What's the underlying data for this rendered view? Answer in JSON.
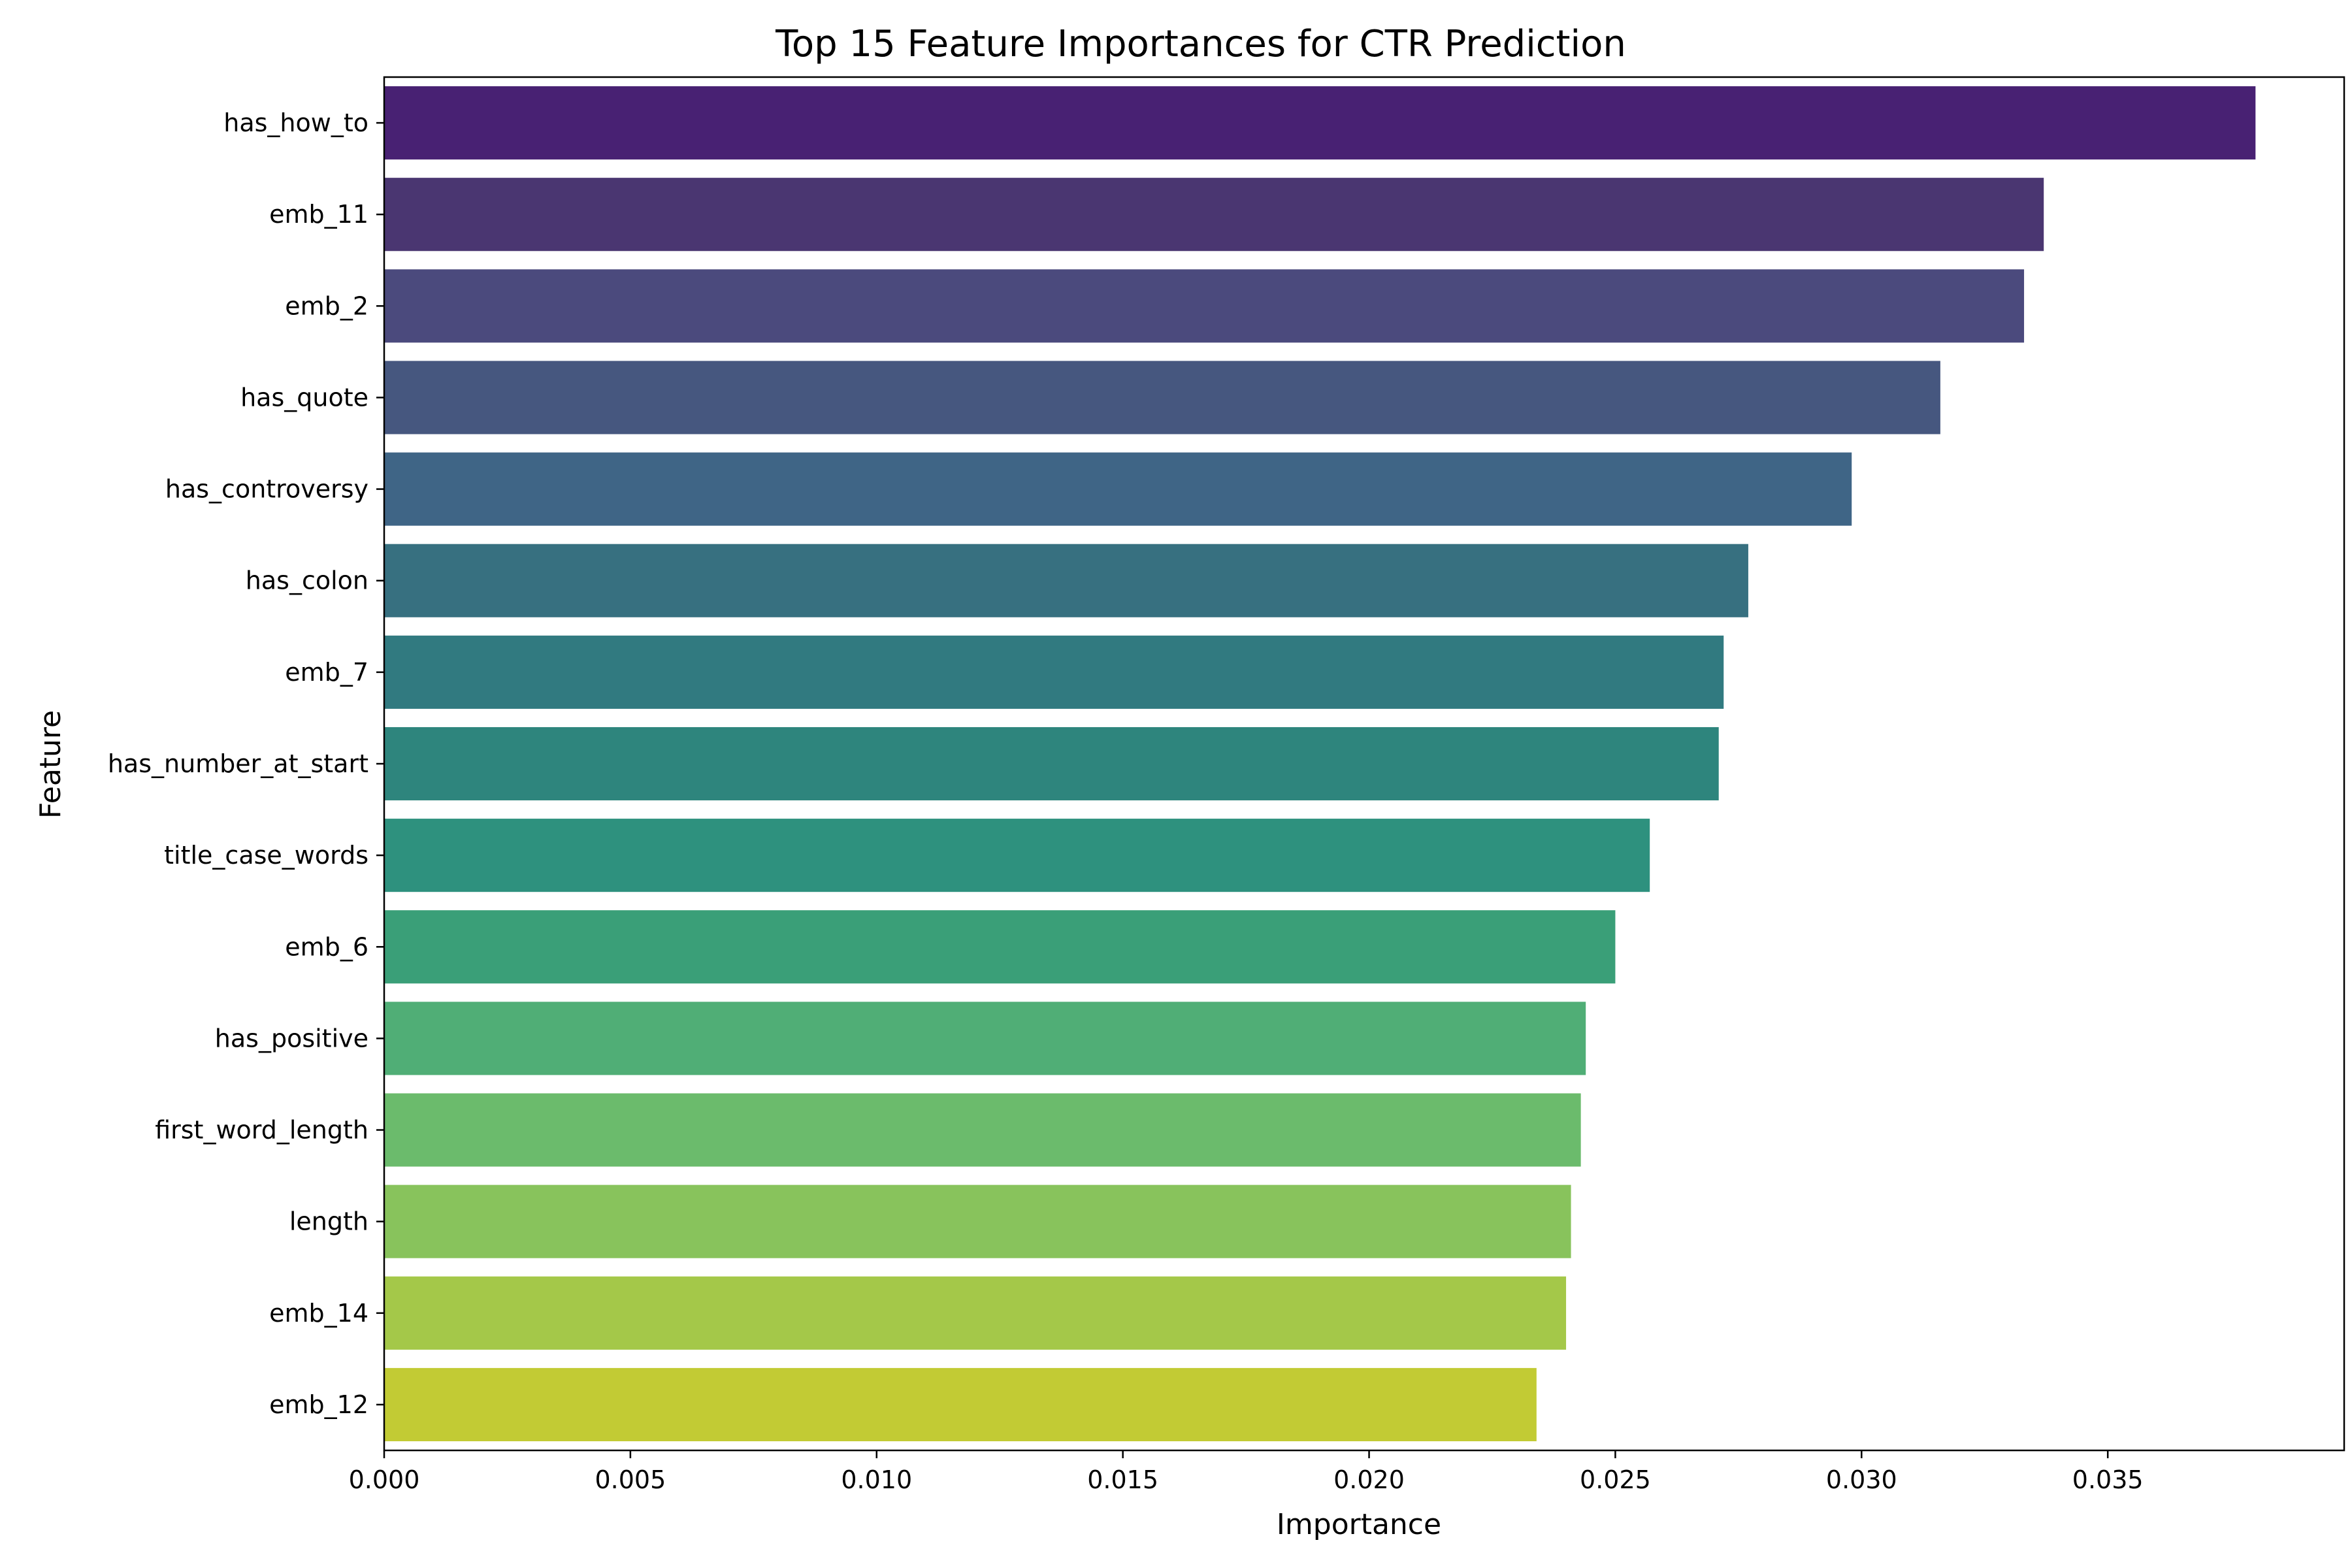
{
  "chart_data": {
    "type": "bar",
    "orientation": "horizontal",
    "title": "Top 15 Feature Importances for CTR Prediction",
    "xlabel": "Importance",
    "ylabel": "Feature",
    "xlim": [
      0.0,
      0.0398
    ],
    "grid": false,
    "x_ticks": [
      "0.000",
      "0.005",
      "0.010",
      "0.015",
      "0.020",
      "0.025",
      "0.030",
      "0.035"
    ],
    "x_tick_values": [
      0.0,
      0.005,
      0.01,
      0.015,
      0.02,
      0.025,
      0.03,
      0.035
    ],
    "categories": [
      "has_how_to",
      "emb_11",
      "emb_2",
      "has_quote",
      "has_controversy",
      "has_colon",
      "emb_7",
      "has_number_at_start",
      "title_case_words",
      "emb_6",
      "has_positive",
      "first_word_length",
      "length",
      "emb_14",
      "emb_12"
    ],
    "values": [
      0.038,
      0.0337,
      0.0333,
      0.0316,
      0.0298,
      0.0277,
      0.0272,
      0.0271,
      0.0257,
      0.025,
      0.0244,
      0.0243,
      0.0241,
      0.024,
      0.0234
    ],
    "colors": [
      "#482173",
      "#4a3671",
      "#4b4a7d",
      "#46577f",
      "#3f6586",
      "#377080",
      "#317a80",
      "#2e857d",
      "#2e917e",
      "#3a9f78",
      "#50ae76",
      "#6bbb6c",
      "#88c35c",
      "#a4c849",
      "#c2cb34"
    ]
  }
}
